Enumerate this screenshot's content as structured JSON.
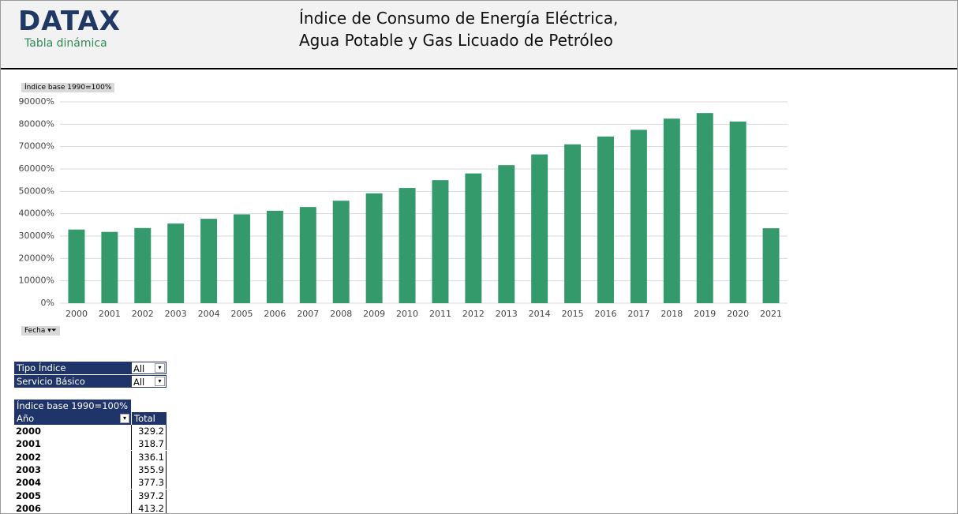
{
  "header": {
    "logo": "DATAX",
    "subtitle": "Tabla dinámica",
    "title_lines": [
      "Índice de Consumo de Energía Eléctrica,",
      "Agua Potable y Gas Licuado de Petróleo"
    ]
  },
  "chart_data": {
    "type": "bar",
    "y_label": "Índice base 1990=100%",
    "x_label": "Fecha",
    "color": "#349a6b",
    "grid": true,
    "categories": [
      "2000",
      "2001",
      "2002",
      "2003",
      "2004",
      "2005",
      "2006",
      "2007",
      "2008",
      "2009",
      "2010",
      "2011",
      "2012",
      "2013",
      "2014",
      "2015",
      "2016",
      "2017",
      "2018",
      "2019",
      "2020",
      "2021"
    ],
    "values": [
      32920,
      31870,
      33610,
      35590,
      37730,
      39720,
      41320,
      43000,
      45800,
      49100,
      51500,
      55000,
      58000,
      61700,
      66500,
      71000,
      74500,
      77500,
      82500,
      85000,
      81200,
      33500
    ],
    "ylim": [
      0,
      90000
    ],
    "yticks": [
      {
        "value": 0,
        "label": "0%"
      },
      {
        "value": 10000,
        "label": "10000%"
      },
      {
        "value": 20000,
        "label": "20000%"
      },
      {
        "value": 30000,
        "label": "30000%"
      },
      {
        "value": 40000,
        "label": "40000%"
      },
      {
        "value": 50000,
        "label": "50000%"
      },
      {
        "value": 60000,
        "label": "60000%"
      },
      {
        "value": 70000,
        "label": "70000%"
      },
      {
        "value": 80000,
        "label": "80000%"
      },
      {
        "value": 90000,
        "label": "90000%"
      }
    ]
  },
  "filters": [
    {
      "label": "Tipo Índice",
      "value": "All"
    },
    {
      "label": "Servicio Básico",
      "value": "All"
    }
  ],
  "pivot": {
    "title": "Índice base 1990=100%",
    "headers": [
      "Año",
      "Total"
    ],
    "rows": [
      [
        "2000",
        329.2
      ],
      [
        "2001",
        318.7
      ],
      [
        "2002",
        336.1
      ],
      [
        "2003",
        355.9
      ],
      [
        "2004",
        377.3
      ],
      [
        "2005",
        397.2
      ],
      [
        "2006",
        413.2
      ]
    ]
  }
}
